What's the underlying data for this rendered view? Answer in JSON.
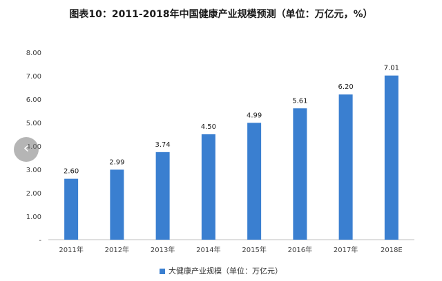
{
  "chart_data": {
    "type": "bar",
    "title": "图表10：2011-2018年中国健康产业规模预测（单位：万亿元，%）",
    "categories": [
      "2011年",
      "2012年",
      "2013年",
      "2014年",
      "2015年",
      "2016年",
      "2017年",
      "2018E"
    ],
    "series": [
      {
        "name": "大健康产业规模（单位：万亿元）",
        "values": [
          2.6,
          2.99,
          3.74,
          4.5,
          4.99,
          5.61,
          6.2,
          7.01
        ]
      }
    ],
    "yticks": [
      "-",
      "1.00",
      "2.00",
      "3.00",
      "4.00",
      "5.00",
      "6.00",
      "7.00",
      "8.00"
    ],
    "ylim": [
      0,
      8
    ],
    "grid": false,
    "legend_position": "bottom",
    "bar_color": "#3a7fd0"
  },
  "ui": {
    "back_icon": "chevron-left-icon"
  }
}
